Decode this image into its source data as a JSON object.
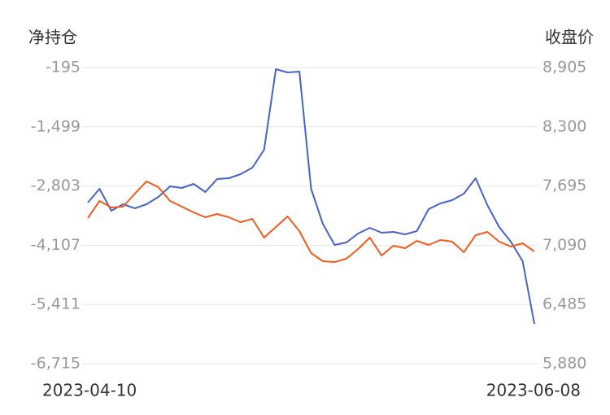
{
  "chart_data": {
    "type": "line",
    "y_label": "净持仓",
    "y2_label": "收盘价",
    "categories": [
      "2023-04-10",
      null,
      null,
      null,
      null,
      null,
      null,
      null,
      null,
      null,
      null,
      null,
      null,
      null,
      null,
      null,
      null,
      null,
      null,
      null,
      null,
      null,
      null,
      null,
      null,
      null,
      null,
      null,
      null,
      null,
      null,
      null,
      null,
      null,
      null,
      null,
      null,
      null,
      "2023-06-08"
    ],
    "series": [
      {
        "color": "#4763c4",
        "axis": "y",
        "values": [
          -3168,
          -2864,
          -3348,
          -3204,
          -3294,
          -3204,
          -3043,
          -2810,
          -2846,
          -2756,
          -2936,
          -2649,
          -2631,
          -2541,
          -2398,
          -2004,
          -231,
          -302,
          -285,
          -2864,
          -3634,
          -4100,
          -4046,
          -3849,
          -3724,
          -3831,
          -3813,
          -3867,
          -3795,
          -3312,
          -3186,
          -3115,
          -2971,
          -2631,
          -3222,
          -3706,
          -4028,
          -4458,
          -5837
        ]
      },
      {
        "color": "#f25b1c",
        "axis": "y2",
        "values": [
          7368,
          7542,
          7476,
          7484,
          7617,
          7742,
          7683,
          7542,
          7484,
          7426,
          7376,
          7409,
          7376,
          7326,
          7359,
          7168,
          7276,
          7384,
          7235,
          7010,
          6927,
          6919,
          6952,
          7052,
          7168,
          6985,
          7085,
          7060,
          7135,
          7093,
          7143,
          7127,
          7019,
          7193,
          7226,
          7127,
          7077,
          7110,
          7027
        ]
      }
    ],
    "ylim": [
      -6715,
      -195
    ],
    "yticks": [
      -195,
      {
        "value": -1499,
        "label": "-1,499"
      },
      {
        "value": -2803,
        "label": "-2,803"
      },
      {
        "value": -4107,
        "label": "-4,107"
      },
      {
        "value": -5411,
        "label": "-5,411"
      },
      {
        "value": -6715,
        "label": "-6,715"
      }
    ],
    "y2lim": [
      5880,
      8905
    ],
    "y2ticks": [
      {
        "value": 8905,
        "label": "8,905"
      },
      {
        "value": 8300,
        "label": "8,300"
      },
      {
        "value": 7695,
        "label": "7,695"
      },
      {
        "value": 7090,
        "label": "7,090"
      },
      {
        "value": 6485,
        "label": "6,485"
      },
      {
        "value": 5880,
        "label": "5,880"
      }
    ],
    "grid": true
  }
}
